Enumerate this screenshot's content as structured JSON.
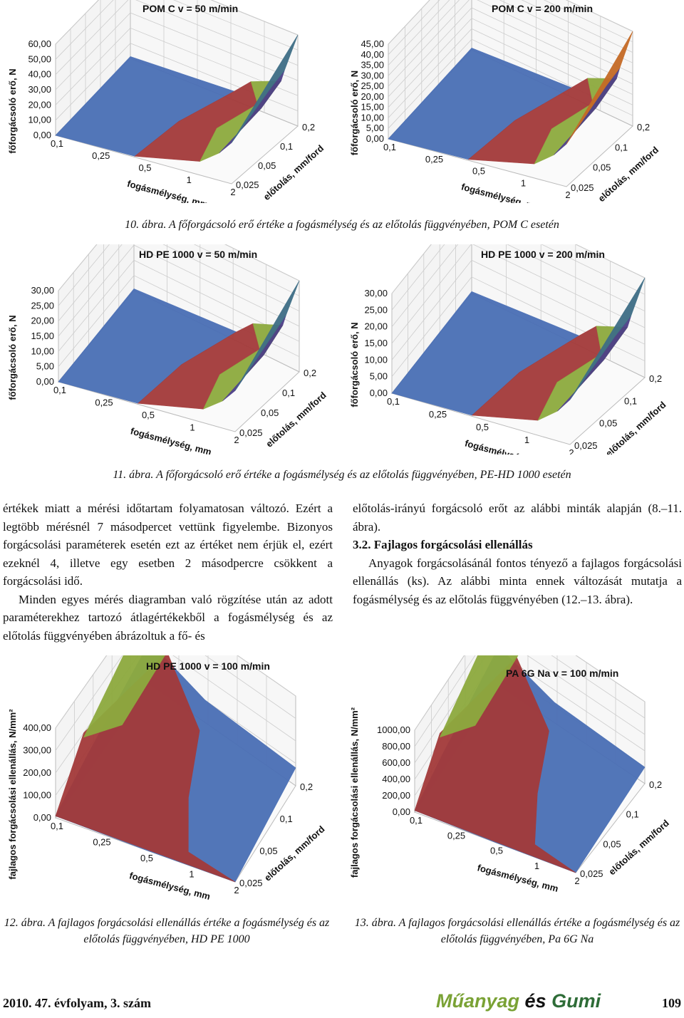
{
  "chart_data": [
    {
      "type": "surface",
      "title": "POM C v = 50 m/min",
      "ylabel": "főforgácsoló erő, N",
      "xlabel": "fogásmélység, mm",
      "zlabel": "előtolás, mm/ford",
      "z_ticks": [
        "60,00",
        "50,00",
        "40,00",
        "30,00",
        "20,00",
        "10,00",
        "0,00"
      ],
      "x_ticks": [
        "0,1",
        "0,25",
        "0,5",
        "1",
        "2"
      ],
      "depth_ticks": [
        "0,025",
        "0,05",
        "0,1",
        "0,2"
      ],
      "ylim": [
        0,
        60
      ]
    },
    {
      "type": "surface",
      "title": "POM C v = 200 m/min",
      "ylabel": "főforgácsoló erő, N",
      "xlabel": "fogásmélység, mm",
      "zlabel": "előtolás, mm/ford",
      "z_ticks": [
        "45,00",
        "40,00",
        "35,00",
        "30,00",
        "25,00",
        "20,00",
        "15,00",
        "10,00",
        "5,00",
        "0,00"
      ],
      "x_ticks": [
        "0,1",
        "0,25",
        "0,5",
        "1",
        "2"
      ],
      "depth_ticks": [
        "0,025",
        "0,05",
        "0,1",
        "0,2"
      ],
      "ylim": [
        0,
        45
      ]
    },
    {
      "type": "surface",
      "title": "HD PE 1000 v = 50 m/min",
      "ylabel": "főforgácsoló erő, N",
      "xlabel": "fogásmélység, mm",
      "zlabel": "előtolás, mm/ford",
      "z_ticks": [
        "30,00",
        "25,00",
        "20,00",
        "15,00",
        "10,00",
        "5,00",
        "0,00"
      ],
      "x_ticks": [
        "0,1",
        "0,25",
        "0,5",
        "1",
        "2"
      ],
      "depth_ticks": [
        "0,025",
        "0,05",
        "0,1",
        "0,2"
      ],
      "ylim": [
        0,
        30
      ]
    },
    {
      "type": "surface",
      "title": "HD PE 1000 v = 200 m/min",
      "ylabel": "főforgácsoló erő, N",
      "xlabel": "fogásmélység, mm",
      "zlabel": "előtolás, mm/ford",
      "z_ticks": [
        "30,00",
        "25,00",
        "20,00",
        "15,00",
        "10,00",
        "5,00",
        "0,00"
      ],
      "x_ticks": [
        "0,1",
        "0,25",
        "0,5",
        "1",
        "2"
      ],
      "depth_ticks": [
        "0,025",
        "0,05",
        "0,1",
        "0,2"
      ],
      "ylim": [
        0,
        30
      ]
    },
    {
      "type": "surface",
      "title": "HD PE 1000 v = 100 m/min",
      "ylabel": "fajlagos forgácsolási ellenállás, N/mm²",
      "xlabel": "fogásmélység, mm",
      "zlabel": "előtolás, mm/ford",
      "z_ticks": [
        "400,00",
        "300,00",
        "200,00",
        "100,00",
        "0,00"
      ],
      "x_ticks": [
        "0,1",
        "0,25",
        "0,5",
        "1",
        "2"
      ],
      "depth_ticks": [
        "0,025",
        "0,05",
        "0,1",
        "0,2"
      ],
      "ylim": [
        0,
        400
      ]
    },
    {
      "type": "surface",
      "title": "PA 6G Na v = 100 m/min",
      "ylabel": "fajlagos forgácsolási ellenállás, N/mm²",
      "xlabel": "fogásmélység, mm",
      "zlabel": "előtolás, mm/ford",
      "z_ticks": [
        "1000,00",
        "800,00",
        "600,00",
        "400,00",
        "200,00",
        "0,00"
      ],
      "x_ticks": [
        "0,1",
        "0,25",
        "0,5",
        "1",
        "2"
      ],
      "depth_ticks": [
        "0,025",
        "0,05",
        "0,1",
        "0,2"
      ],
      "ylim": [
        0,
        1000
      ]
    }
  ],
  "captions": {
    "fig10": "10. ábra. A főforgácsoló erő értéke a fogásmélység és az előtolás függvényében, POM C esetén",
    "fig11": "11. ábra. A főforgácsoló erő értéke a fogásmélység és az előtolás függvényében, PE-HD 1000 esetén",
    "fig12": "12. ábra. A fajlagos forgácsolási ellenállás értéke a fogásmélység és az előtolás függvényében, HD PE 1000",
    "fig13": "13. ábra. A fajlagos forgácsolási ellenállás értéke a fogásmélység és az előtolás függvényében, Pa 6G Na"
  },
  "text": {
    "left_p1": "értékek miatt a mérési időtartam folyamatosan változó. Ezért a legtöbb mérésnél 7 másodpercet vettünk figyelembe. Bizonyos forgácsolási paraméterek esetén ezt az értéket nem érjük el, ezért ezeknél 4, illetve egy esetben 2 másodpercre csökkent a forgácsolási idő.",
    "left_p2": "Minden egyes mérés diagramban való rögzítése után az adott paraméterekhez tartozó átlagértékekből a fogásmélység és az előtolás függvényében ábrázoltuk a fő- és",
    "right_p1": "előtolás-irányú forgácsoló erőt az alábbi minták alapján (8.–11. ábra).",
    "section_title": "3.2. Fajlagos forgácsolási ellenállás",
    "right_p2": "Anyagok forgácsolásánál fontos tényező a fajlagos forgácsolási ellenállás (ks). Az alábbi minta ennek változását mutatja a fogásmélység és az előtolás függvényében (12.–13. ábra)."
  },
  "footer": {
    "issue": "2010. 47. évfolyam, 3. szám",
    "logo_part1": "Műanyag",
    "logo_part2": " és ",
    "logo_part3": "Gumi",
    "page": "109"
  },
  "colors": {
    "blue": "#4a6fb5",
    "red": "#a33a3a",
    "green": "#8daa3e",
    "purple": "#4d3f88",
    "teal": "#3e6e86",
    "orange": "#c56a26"
  }
}
